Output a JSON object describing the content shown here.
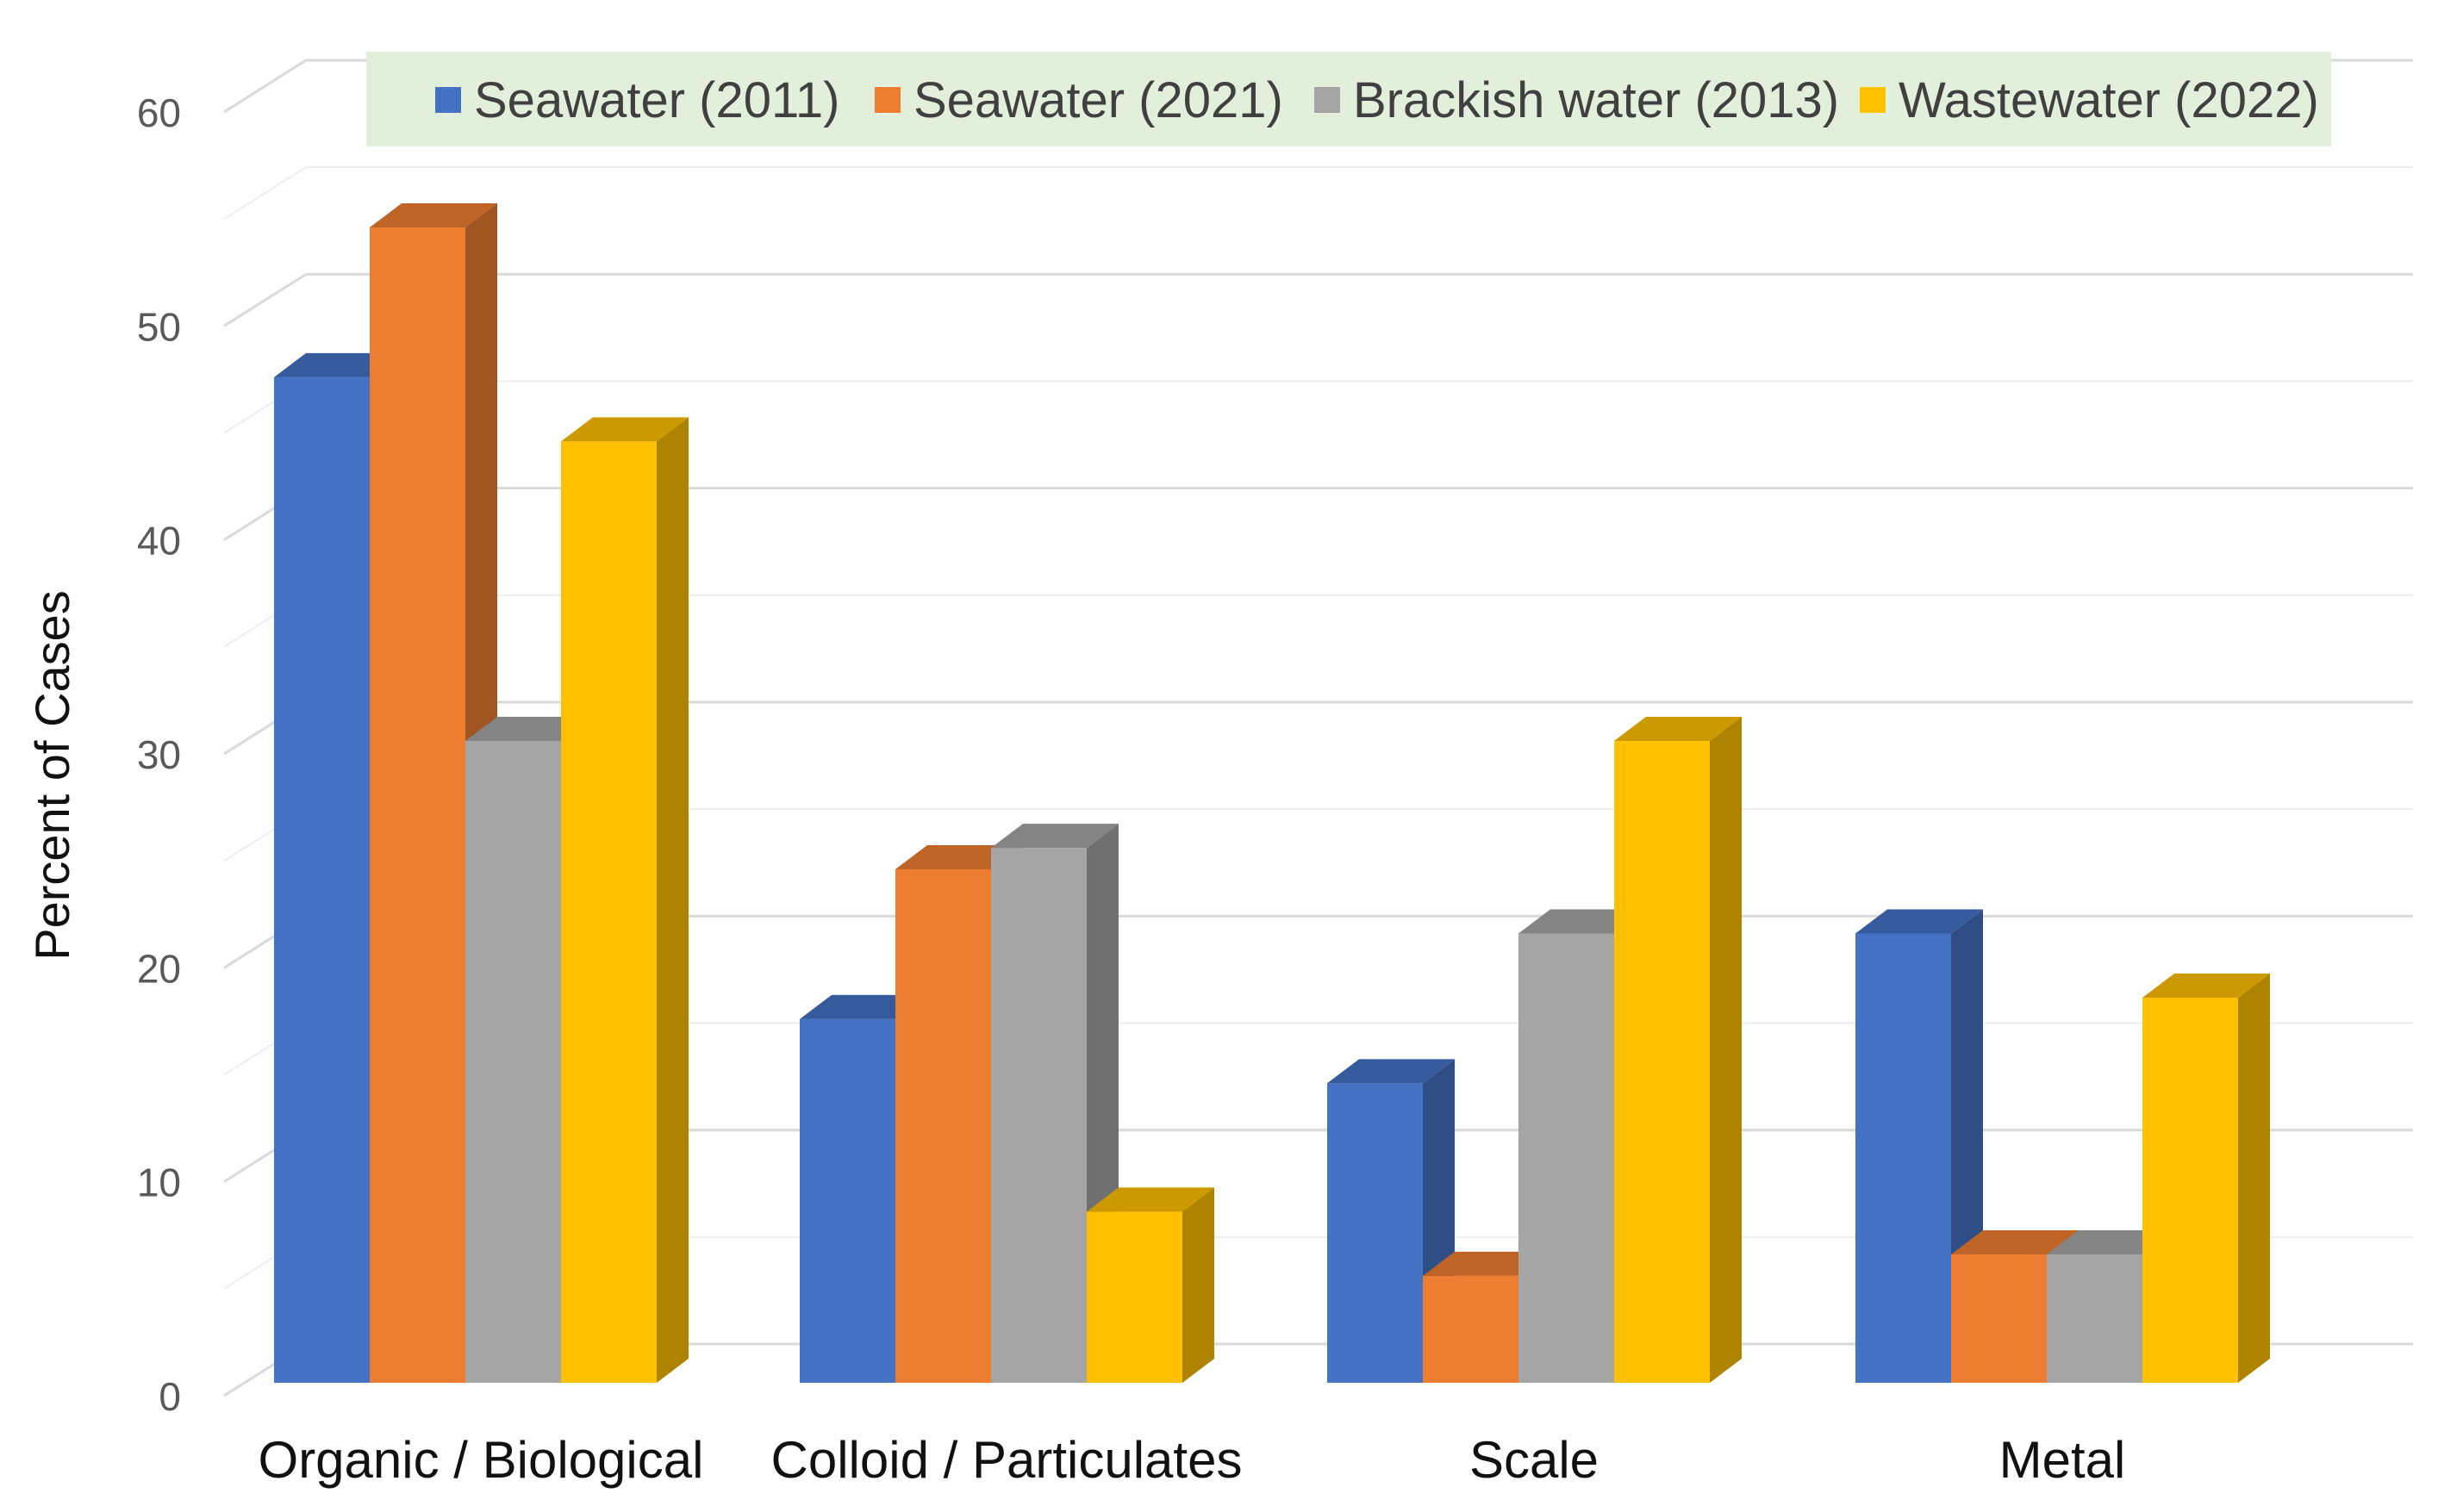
{
  "chart_data": {
    "type": "bar",
    "title": "",
    "xlabel": "",
    "ylabel": "Percent of Cases",
    "ylim": [
      0,
      60
    ],
    "yticks": [
      0,
      10,
      20,
      30,
      40,
      50,
      60
    ],
    "grid": true,
    "legend_position": "top",
    "categories": [
      "Organic / Biological",
      "Colloid / Particulates",
      "Scale",
      "Metal"
    ],
    "series": [
      {
        "name": "Seawater (2011)",
        "color": "#4472C4",
        "values": [
          47,
          17,
          14,
          21
        ]
      },
      {
        "name": "Seawater (2021)",
        "color": "#ED7D31",
        "values": [
          54,
          24,
          5,
          6
        ]
      },
      {
        "name": "Brackish water (2013)",
        "color": "#A5A5A5",
        "values": [
          30,
          25,
          21,
          6
        ]
      },
      {
        "name": "Wastewater (2022)",
        "color": "#FFC000",
        "values": [
          44,
          8,
          30,
          18
        ]
      }
    ],
    "legend_background": "#E2EFDA"
  }
}
